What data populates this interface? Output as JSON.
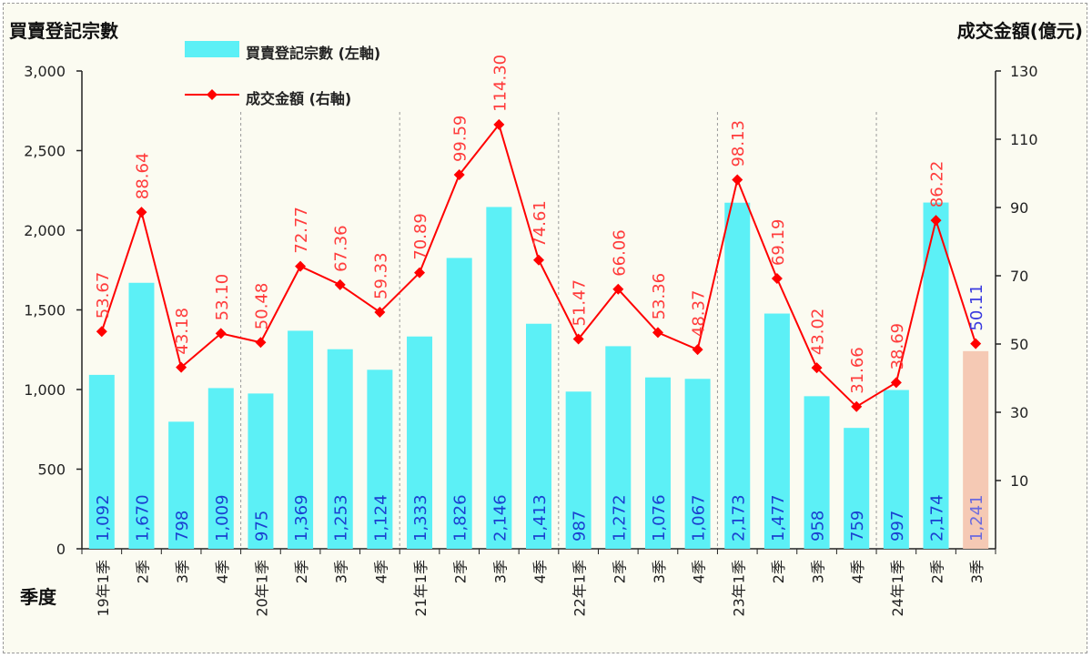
{
  "chart_data": {
    "type": "bar",
    "left_axis_title": "買賣登記宗數",
    "right_axis_title": "成交金額(億元)",
    "xlabel": "季度",
    "categories": [
      "19年1季",
      "2季",
      "3季",
      "4季",
      "20年1季",
      "2季",
      "3季",
      "4季",
      "21年1季",
      "2季",
      "3季",
      "4季",
      "22年1季",
      "2季",
      "3季",
      "4季",
      "23年1季",
      "2季",
      "3季",
      "4季",
      "24年1季",
      "2季",
      "3季"
    ],
    "y_left": {
      "ylim": [
        0,
        3000
      ],
      "ticks": [
        0,
        500,
        1000,
        1500,
        2000,
        2500,
        3000
      ],
      "tick_labels": [
        "0",
        "500",
        "1,000",
        "1,500",
        "2,000",
        "2,500",
        "3,000"
      ]
    },
    "y_right": {
      "ylim": [
        -10,
        130
      ],
      "ticks": [
        10,
        30,
        50,
        70,
        90,
        110,
        130
      ],
      "tick_labels": [
        "10",
        "30",
        "50",
        "70",
        "90",
        "110",
        "130"
      ]
    },
    "series": [
      {
        "name": "買賣登記宗數 (左軸)",
        "kind": "bar",
        "axis": "left",
        "values": [
          1092,
          1670,
          798,
          1009,
          975,
          1369,
          1253,
          1124,
          1333,
          1826,
          2146,
          1413,
          987,
          1272,
          1076,
          1067,
          2173,
          1477,
          958,
          759,
          997,
          2174,
          1241
        ],
        "labels": [
          "1,092",
          "1,670",
          "798",
          "1,009",
          "975",
          "1,369",
          "1,253",
          "1,124",
          "1,333",
          "1,826",
          "2,146",
          "1,413",
          "987",
          "1,272",
          "1,076",
          "1,067",
          "2,173",
          "1,477",
          "958",
          "759",
          "997",
          "2,174",
          "1,241"
        ]
      },
      {
        "name": "成交金額 (右軸)",
        "kind": "line",
        "axis": "right",
        "values": [
          53.67,
          88.64,
          43.18,
          53.1,
          50.48,
          72.77,
          67.36,
          59.33,
          70.89,
          99.59,
          114.3,
          74.61,
          51.47,
          66.06,
          53.36,
          48.37,
          98.13,
          69.19,
          43.02,
          31.66,
          38.69,
          86.22,
          50.11
        ],
        "labels": [
          "53.67",
          "88.64",
          "43.18",
          "53.10",
          "50.48",
          "72.77",
          "67.36",
          "59.33",
          "70.89",
          "99.59",
          "114.30",
          "74.61",
          "51.47",
          "66.06",
          "53.36",
          "48.37",
          "98.13",
          "69.19",
          "43.02",
          "31.66",
          "38.69",
          "86.22",
          "50.11"
        ]
      }
    ],
    "highlight_last": true,
    "year_dividers_after_index": [
      3,
      7,
      11,
      15,
      19
    ],
    "colors": {
      "bar": "#5cf0f6",
      "bar_highlight": "#f5c9b4",
      "line": "#ff0000",
      "bar_label": "#1a3fd0",
      "bar_label_highlight": "#6a6adf",
      "line_label": "#ff3b3b",
      "line_label_highlight": "#3a3adf"
    }
  }
}
